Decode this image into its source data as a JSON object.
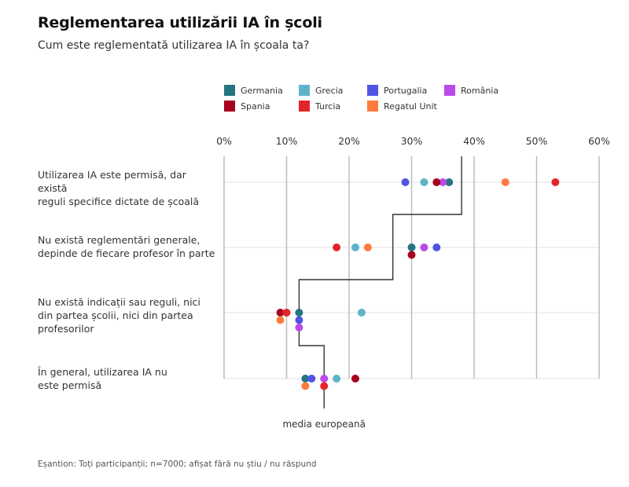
{
  "title": "Reglementarea utilizării IA în școli",
  "subtitle": "Cum este reglementată utilizarea IA în școala ta?",
  "footnote": "Eșantion: Toți participanții; n=7000; afișat fără nu știu / nu răspund",
  "legend": [
    {
      "name": "Germania",
      "color": "#237580"
    },
    {
      "name": "Grecia",
      "color": "#5EB3C8"
    },
    {
      "name": "Portugalia",
      "color": "#4E55E3"
    },
    {
      "name": "România",
      "color": "#B94BE8"
    },
    {
      "name": "Spania",
      "color": "#A8001F"
    },
    {
      "name": "Turcia",
      "color": "#E3242B"
    },
    {
      "name": "Regatul Unit",
      "color": "#FF7A3D"
    }
  ],
  "chart_data": {
    "type": "scatter",
    "title": "Reglementarea utilizării IA în școli",
    "subtitle": "Cum este reglementată utilizarea IA în școala ta?",
    "xlabel": "",
    "ylabel": "",
    "xlim": [
      0,
      60
    ],
    "x_ticks": [
      "0%",
      "10%",
      "20%",
      "30%",
      "40%",
      "50%",
      "60%"
    ],
    "grid": true,
    "legend_position": "top",
    "categories": [
      "Utilizarea IA este permisă, dar există reguli specifice dictate de școală",
      "Nu există reglementări generale, depinde de fiecare profesor în parte",
      "Nu există indicații sau reguli, nici din partea școlii, nici din partea profesorilor",
      "În general, utilizarea IA nu este permisă"
    ],
    "category_lines": [
      [
        "Utilizarea IA este permisă, dar există",
        "reguli specifice dictate de școală"
      ],
      [
        "Nu există reglementări generale,",
        "depinde de fiecare profesor în parte"
      ],
      [
        "Nu există indicații sau reguli, nici",
        "din partea școlii, nici din partea",
        "profesorilor"
      ],
      [
        "În general, utilizarea IA nu",
        "este permisă"
      ]
    ],
    "series": [
      {
        "name": "Germania",
        "values": [
          36,
          30,
          12,
          13
        ]
      },
      {
        "name": "Grecia",
        "values": [
          32,
          21,
          22,
          18
        ]
      },
      {
        "name": "Portugalia",
        "values": [
          29,
          34,
          12,
          14
        ]
      },
      {
        "name": "România",
        "values": [
          35,
          32,
          12,
          16
        ]
      },
      {
        "name": "Spania",
        "values": [
          34,
          30,
          9,
          21
        ]
      },
      {
        "name": "Turcia",
        "values": [
          53,
          18,
          10,
          16
        ]
      },
      {
        "name": "Regatul Unit",
        "values": [
          45,
          23,
          9,
          13
        ]
      }
    ],
    "european_median": {
      "label": "media europeană",
      "values": [
        38,
        27,
        12,
        16
      ]
    }
  }
}
